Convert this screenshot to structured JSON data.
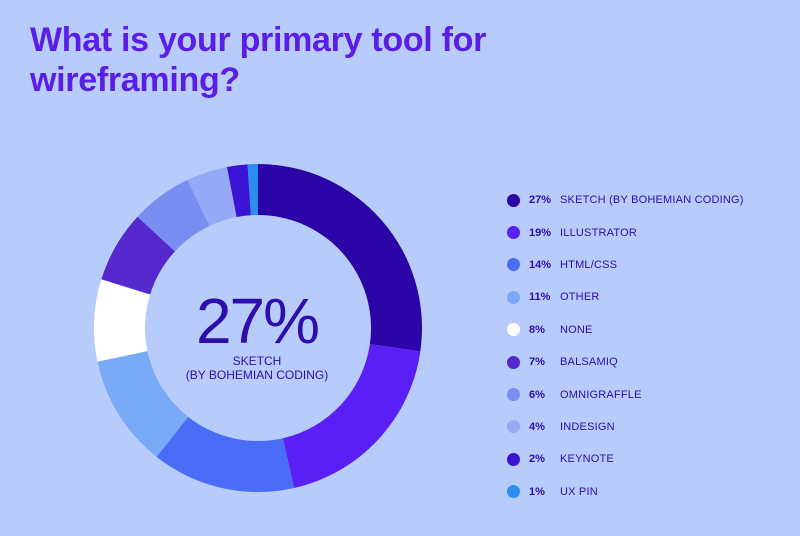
{
  "title": "What is your primary tool for wireframing?",
  "center": {
    "value": "27%",
    "line1": "SKETCH",
    "line2": "(BY BOHEMIAN CODING)"
  },
  "chart_data": {
    "type": "pie",
    "title": "What is your primary tool for wireframing?",
    "legend": "right",
    "slices": [
      {
        "label": "SKETCH (BY BOHEMIAN CODING)",
        "value": 27,
        "pct_label": "27%",
        "color": "#2b05a8"
      },
      {
        "label": "ILLUSTRATOR",
        "value": 19,
        "pct_label": "19%",
        "color": "#5a1ff5"
      },
      {
        "label": "HTML/CSS",
        "value": 14,
        "pct_label": "14%",
        "color": "#4a6cf6"
      },
      {
        "label": "OTHER",
        "value": 11,
        "pct_label": "11%",
        "color": "#78aaf7"
      },
      {
        "label": "NONE",
        "value": 8,
        "pct_label": "8%",
        "color": "#ffffff"
      },
      {
        "label": "BALSAMIQ",
        "value": 7,
        "pct_label": "7%",
        "color": "#5428cc"
      },
      {
        "label": "OMNIGRAFFLE",
        "value": 6,
        "pct_label": "6%",
        "color": "#7a8ef2"
      },
      {
        "label": "INDESIGN",
        "value": 4,
        "pct_label": "4%",
        "color": "#95a9f7"
      },
      {
        "label": "KEYNOTE",
        "value": 2,
        "pct_label": "2%",
        "color": "#3a13d4"
      },
      {
        "label": "UX PIN",
        "value": 1,
        "pct_label": "1%",
        "color": "#2e8ef0"
      }
    ]
  }
}
